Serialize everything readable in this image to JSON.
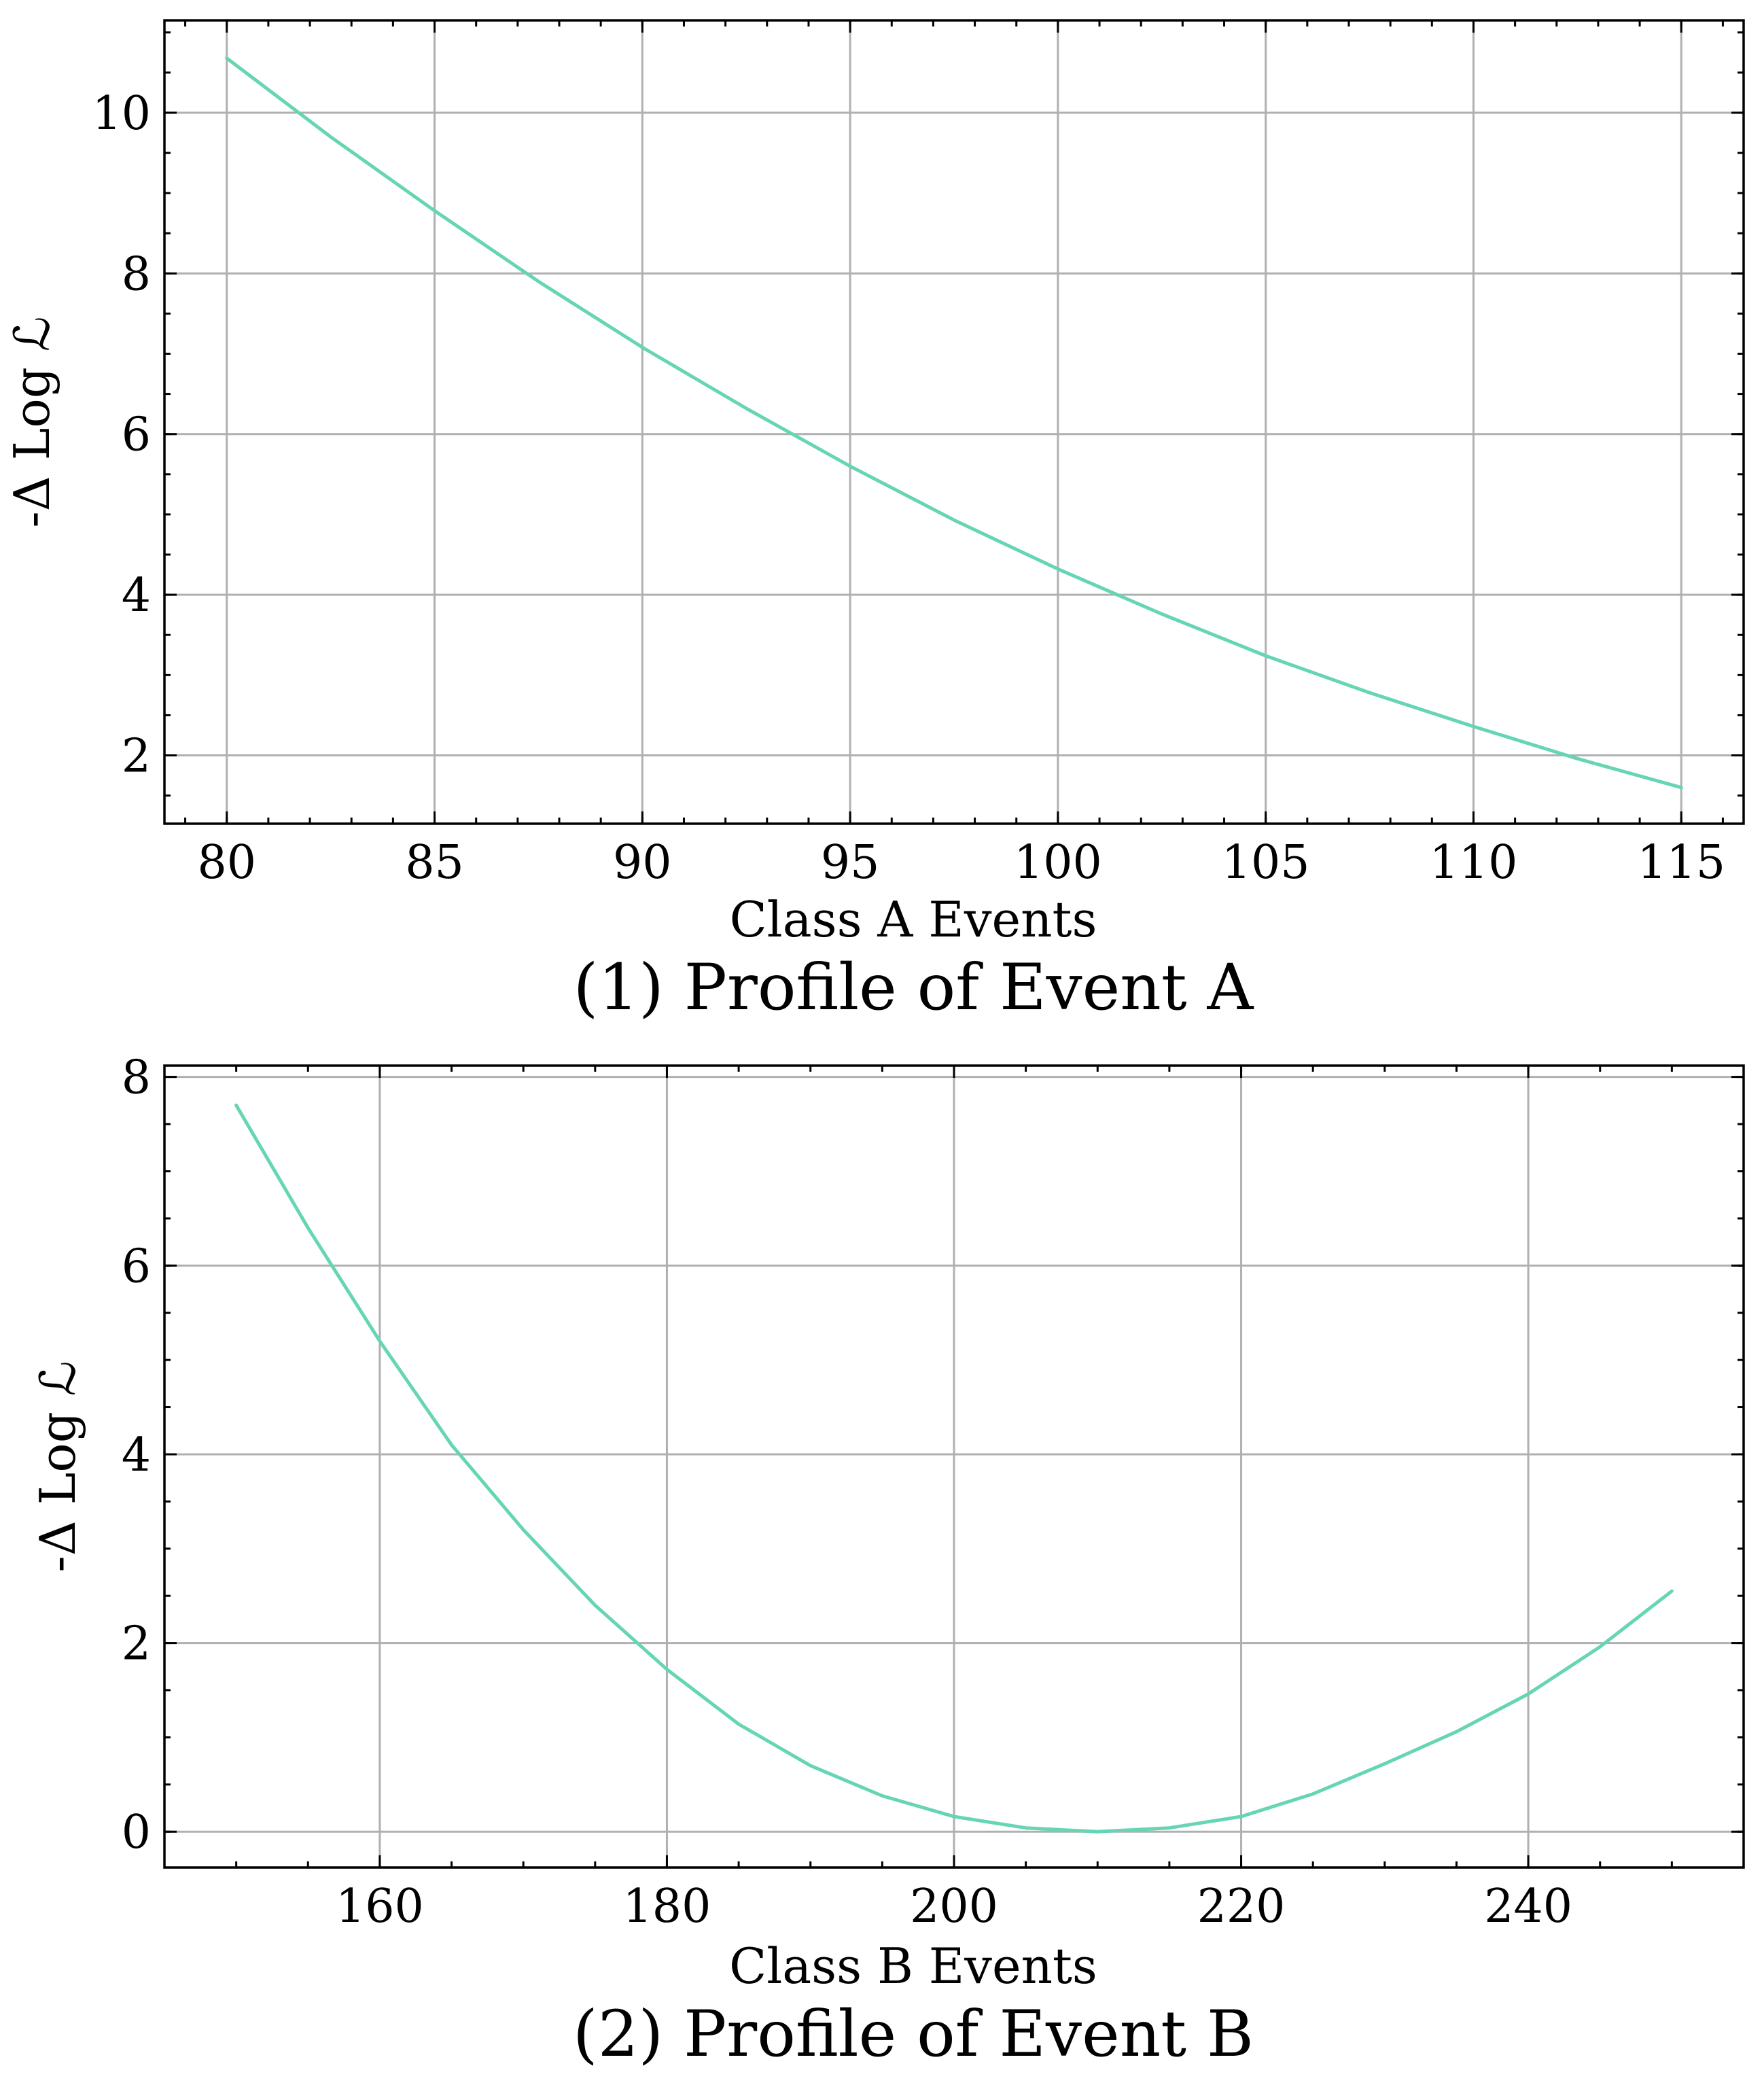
{
  "style": {
    "line_color": "#66d5b5",
    "grid_color": "#b0b0b0"
  },
  "chart_data": [
    {
      "type": "line",
      "caption": "(1) Profile of Event A",
      "xlabel": "Class A Events",
      "ylabel": "-Δ Log ℒ",
      "xlim": [
        78.5,
        116.5
      ],
      "ylim": [
        1.15,
        11.15
      ],
      "xticks": [
        80,
        85,
        90,
        95,
        100,
        105,
        110,
        115
      ],
      "yticks": [
        2,
        4,
        6,
        8,
        10
      ],
      "xminor": 1,
      "yminor": 0.5,
      "grid": true,
      "series": [
        {
          "x": [
            80,
            82.5,
            85,
            87.5,
            90,
            92.5,
            95,
            97.5,
            100,
            102.5,
            105,
            107.5,
            110,
            112.5,
            115
          ],
          "y": [
            10.68,
            9.7,
            8.78,
            7.9,
            7.08,
            6.32,
            5.6,
            4.93,
            4.32,
            3.76,
            3.24,
            2.78,
            2.36,
            1.96,
            1.6
          ]
        }
      ]
    },
    {
      "type": "line",
      "caption": "(2) Profile of Event B",
      "xlabel": "Class B Events",
      "ylabel": "-Δ Log ℒ",
      "xlim": [
        145,
        255
      ],
      "ylim": [
        -0.38,
        8.12
      ],
      "xticks": [
        160,
        180,
        200,
        220,
        240
      ],
      "yticks": [
        0,
        2,
        4,
        6,
        8
      ],
      "xminor": 5,
      "yminor": 0.5,
      "grid": true,
      "series": [
        {
          "x": [
            150,
            155,
            160,
            165,
            170,
            175,
            180,
            185,
            190,
            195,
            200,
            205,
            210,
            215,
            220,
            225,
            230,
            235,
            240,
            245,
            250
          ],
          "y": [
            7.7,
            6.4,
            5.2,
            4.1,
            3.2,
            2.4,
            1.72,
            1.14,
            0.7,
            0.38,
            0.16,
            0.04,
            0.0,
            0.04,
            0.16,
            0.4,
            0.72,
            1.06,
            1.46,
            1.96,
            2.55
          ]
        }
      ]
    }
  ]
}
